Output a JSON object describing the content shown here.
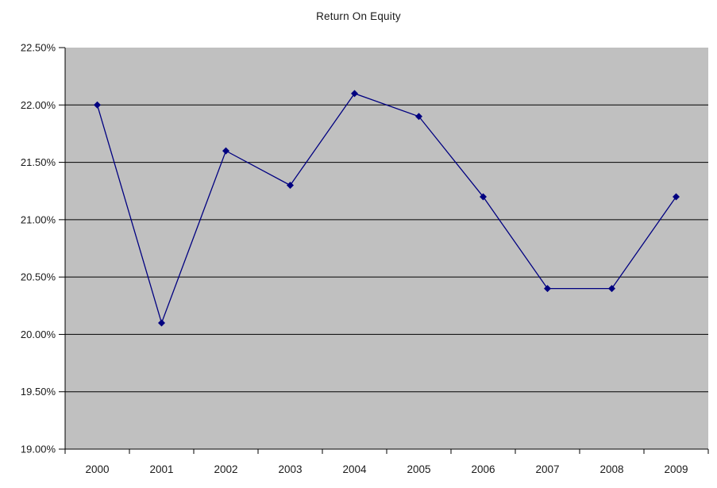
{
  "chart": {
    "title": "Return On Equity"
  },
  "chart_data": {
    "type": "line",
    "title": "Return On Equity",
    "categories": [
      "2000",
      "2001",
      "2002",
      "2003",
      "2004",
      "2005",
      "2006",
      "2007",
      "2008",
      "2009"
    ],
    "values": [
      22.0,
      20.1,
      21.6,
      21.3,
      22.1,
      21.9,
      21.2,
      20.4,
      20.4,
      21.2
    ],
    "unit": "%",
    "xlabel": "",
    "ylabel": "",
    "ylim": [
      19.0,
      22.5
    ],
    "ytick_step": 0.5,
    "ytick_labels": [
      "22.50%",
      "22.00%",
      "21.50%",
      "21.00%",
      "20.50%",
      "20.00%",
      "19.50%",
      "19.00%"
    ],
    "grid": true,
    "legend_position": "none",
    "marker": "diamond",
    "colors": {
      "line": "#000080",
      "marker": "#000080",
      "plot_background": "#c0c0c0",
      "gridline": "#000000",
      "axis": "#000000",
      "text": "#1a1a1a",
      "page_background": "#ffffff"
    }
  }
}
